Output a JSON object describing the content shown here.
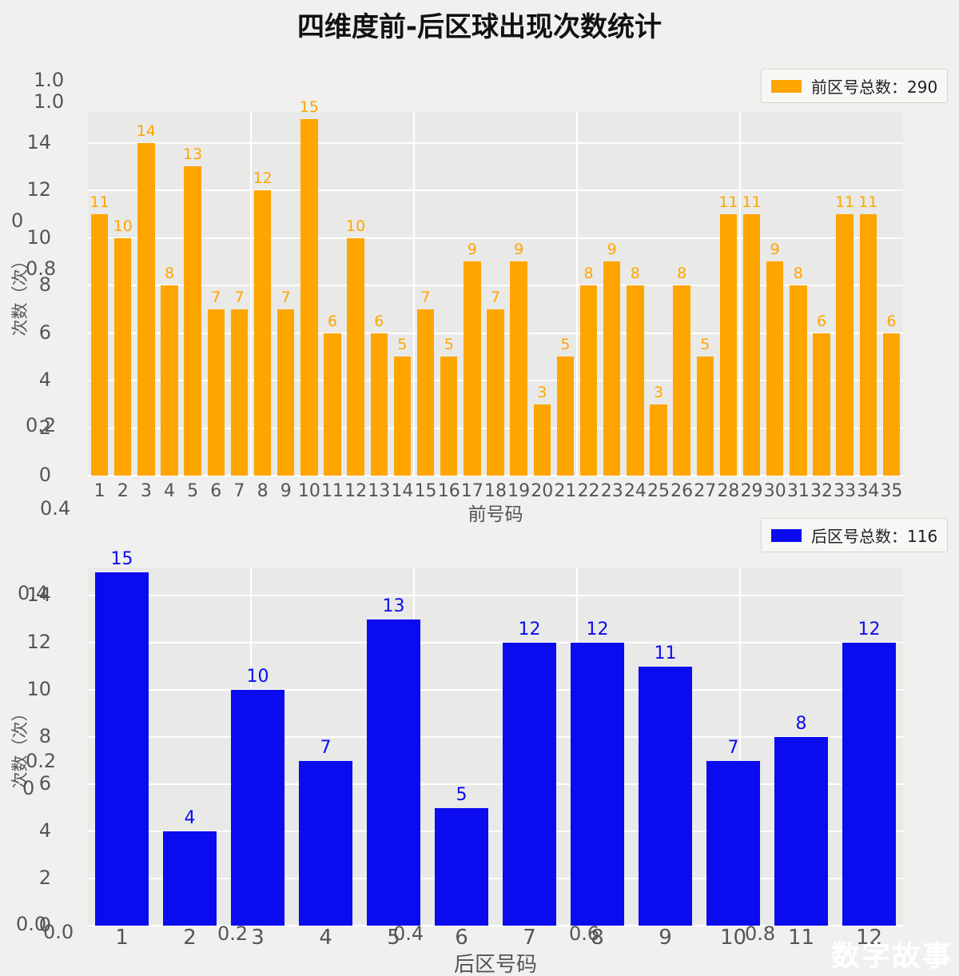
{
  "title": "四维度前-后区球出现次数统计",
  "watermark": "数字故事",
  "chart_data": [
    {
      "type": "bar",
      "name": "front-zone-counts",
      "legend": "前区号总数：290",
      "total": 290,
      "color": "#FFA500",
      "xlabel": "前号码",
      "ylabel": "次数（次）",
      "categories": [
        "1",
        "2",
        "3",
        "4",
        "5",
        "6",
        "7",
        "8",
        "9",
        "10",
        "11",
        "12",
        "13",
        "14",
        "15",
        "16",
        "17",
        "18",
        "19",
        "20",
        "21",
        "22",
        "23",
        "24",
        "25",
        "26",
        "27",
        "28",
        "29",
        "30",
        "31",
        "32",
        "33",
        "34",
        "35"
      ],
      "values": [
        11,
        10,
        14,
        8,
        13,
        7,
        7,
        12,
        7,
        15,
        6,
        10,
        6,
        5,
        7,
        5,
        9,
        7,
        9,
        3,
        5,
        8,
        9,
        8,
        3,
        8,
        5,
        11,
        11,
        9,
        8,
        6,
        11,
        11,
        6
      ],
      "yticks": [
        0,
        2,
        4,
        6,
        8,
        10,
        12,
        14
      ],
      "ylim": [
        0,
        15.3
      ],
      "grid": true,
      "legend_position": "upper right"
    },
    {
      "type": "bar",
      "name": "back-zone-counts",
      "legend": "后区号总数：116",
      "total": 116,
      "color": "#0B0BF0",
      "xlabel": "后区号码",
      "ylabel": "次数（次）",
      "categories": [
        "1",
        "2",
        "3",
        "4",
        "5",
        "6",
        "7",
        "8",
        "9",
        "10",
        "11",
        "12"
      ],
      "values": [
        15,
        4,
        10,
        7,
        13,
        5,
        12,
        12,
        11,
        7,
        8,
        12
      ],
      "yticks": [
        0,
        2,
        4,
        6,
        8,
        10,
        12,
        14
      ],
      "ylim": [
        0,
        15.2
      ],
      "grid": true,
      "legend_position": "upper right"
    }
  ],
  "ghost_labels": [
    "1.0",
    "1.0",
    "0",
    "0.8",
    "0.2",
    "0.4",
    "0.4",
    "0.2",
    "0",
    "0.0",
    "0.0",
    "0.2",
    "0.4",
    "0.6",
    "0.8"
  ]
}
